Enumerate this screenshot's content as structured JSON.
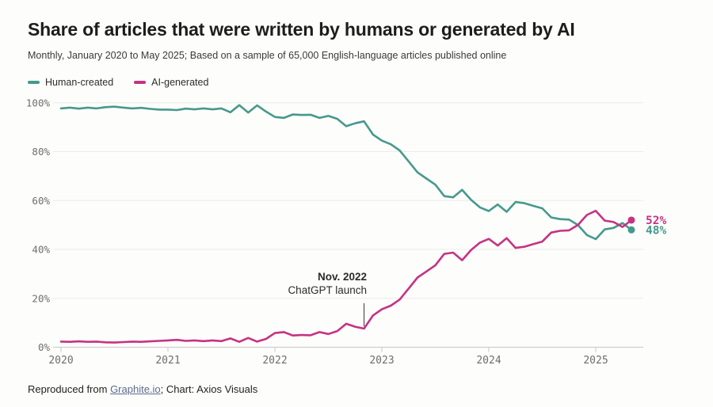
{
  "header": {
    "title": "Share of articles that were written by humans or generated by AI",
    "subtitle": "Monthly, January 2020 to May 2025; Based on a sample of 65,000 English-language articles published online"
  },
  "footer": {
    "prefix": "Reproduced from ",
    "link_text": "Graphite.io",
    "suffix": "; Chart: Axios Visuals"
  },
  "colors": {
    "human": "#46998c",
    "ai": "#c53383",
    "gridline": "#ebebe9",
    "axis_line": "#c9c7c3",
    "tick_label": "#6e6e6c",
    "annotation_line": "#3a3a38",
    "background": "#fdfdfb"
  },
  "chart_data": {
    "type": "line",
    "title": "Share of articles that were written by humans or generated by AI",
    "x_unit": "month",
    "x_range": [
      "2020-01",
      "2025-05"
    ],
    "ylim": [
      0,
      100
    ],
    "grid": "horizontal",
    "legend_position": "top-left",
    "y_ticks": [
      {
        "value": 0,
        "label": "0%"
      },
      {
        "value": 20,
        "label": "20%"
      },
      {
        "value": 40,
        "label": "40%"
      },
      {
        "value": 60,
        "label": "60%"
      },
      {
        "value": 80,
        "label": "80%"
      },
      {
        "value": 100,
        "label": "100%"
      }
    ],
    "x_ticks": [
      {
        "year": 2020,
        "label": "2020"
      },
      {
        "year": 2021,
        "label": "2021"
      },
      {
        "year": 2022,
        "label": "2022"
      },
      {
        "year": 2023,
        "label": "2023"
      },
      {
        "year": 2024,
        "label": "2024"
      },
      {
        "year": 2025,
        "label": "2025"
      }
    ],
    "series": [
      {
        "name": "Human-created",
        "color": "#46998c",
        "end_label": "48%",
        "values": [
          97.7,
          98.0,
          97.6,
          98.0,
          97.7,
          98.2,
          98.4,
          98.0,
          97.7,
          97.9,
          97.5,
          97.2,
          97.2,
          97.0,
          97.6,
          97.3,
          97.7,
          97.3,
          97.7,
          96.1,
          99.0,
          96.0,
          98.9,
          96.4,
          94.2,
          93.8,
          95.2,
          95.0,
          95.1,
          93.8,
          94.6,
          93.4,
          90.4,
          91.6,
          92.4,
          87.0,
          84.5,
          83.0,
          80.5,
          76.0,
          71.5,
          69.0,
          66.5,
          61.8,
          61.3,
          64.4,
          60.3,
          57.2,
          55.7,
          58.4,
          55.4,
          59.4,
          58.9,
          57.8,
          56.8,
          53.1,
          52.4,
          52.2,
          50.0,
          45.9,
          44.2,
          48.2,
          48.8,
          50.8,
          48.0
        ]
      },
      {
        "name": "AI-generated",
        "color": "#c53383",
        "end_label": "52%",
        "values": [
          2.3,
          2.2,
          2.4,
          2.2,
          2.3,
          2.0,
          1.9,
          2.1,
          2.3,
          2.2,
          2.4,
          2.6,
          2.8,
          3.0,
          2.6,
          2.8,
          2.5,
          2.8,
          2.5,
          3.6,
          2.2,
          3.8,
          2.3,
          3.4,
          5.8,
          6.2,
          4.8,
          5.0,
          4.9,
          6.2,
          5.4,
          6.6,
          9.6,
          8.4,
          7.6,
          13.0,
          15.5,
          17.0,
          19.5,
          24.0,
          28.5,
          31.0,
          33.5,
          38.2,
          38.7,
          35.6,
          39.7,
          42.8,
          44.3,
          41.6,
          44.6,
          40.6,
          41.1,
          42.2,
          43.2,
          46.9,
          47.6,
          47.8,
          50.0,
          54.1,
          55.8,
          51.8,
          51.2,
          49.2,
          52.0
        ]
      }
    ],
    "annotation": {
      "line1": "Nov. 2022",
      "line2": "ChatGPT launch",
      "x_month": "2022-11"
    }
  }
}
